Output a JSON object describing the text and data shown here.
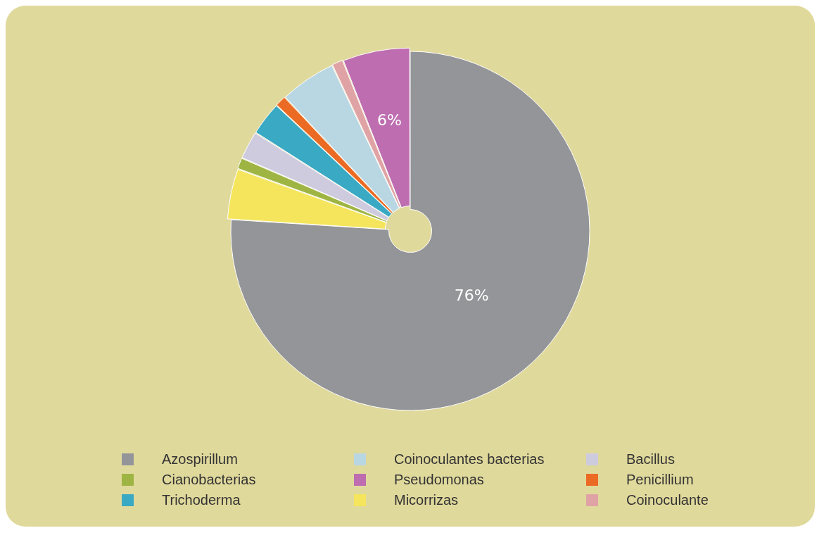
{
  "chart_data": {
    "type": "pie",
    "categories": [
      "Azospirillum",
      "Micorrizas",
      "Cianobacterias",
      "Bacillus",
      "Trichoderma",
      "Penicillium",
      "Coinoculantes bacterias",
      "Coinoculante",
      "Pseudomonas"
    ],
    "values": [
      76,
      4.5,
      1,
      2.5,
      3,
      1,
      5,
      1,
      6
    ],
    "colors": [
      "#939598",
      "#f5e55c",
      "#9fb543",
      "#cfcbdf",
      "#3aa9c4",
      "#ec6b24",
      "#b9d6e3",
      "#e0a3a5",
      "#bd6db0"
    ],
    "value_labels": [
      "76%",
      null,
      null,
      null,
      null,
      null,
      null,
      null,
      "6%"
    ],
    "legend": "bottom"
  }
}
